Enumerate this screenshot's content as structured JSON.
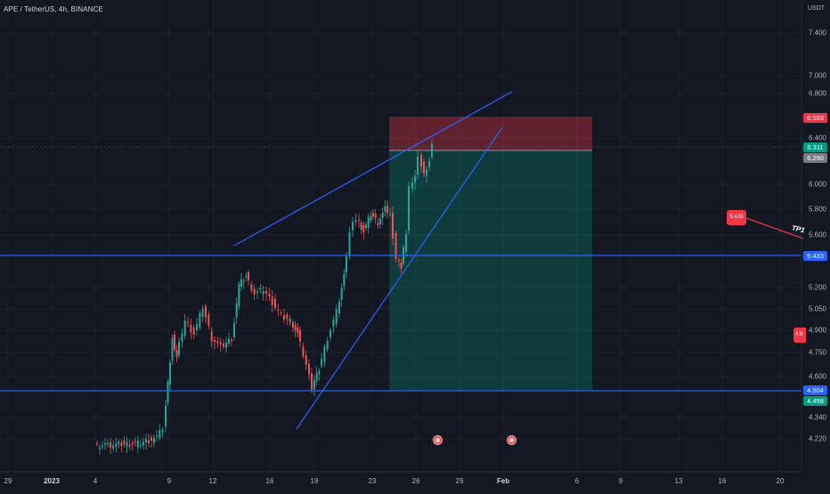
{
  "header": {
    "symbol_line": "APE / TetherUS, 4h, BINANCE"
  },
  "price_axis": {
    "currency": "USDT",
    "ticks": [
      "7.400",
      "7.000",
      "6.800",
      "6.400",
      "6.000",
      "5.800",
      "5.600",
      "5.200",
      "5.050",
      "4.900",
      "4.750",
      "4.600",
      "4.340",
      "4.220"
    ],
    "labels": {
      "stop": "6.583",
      "current": "6.311",
      "entry": "6.290",
      "level_upper": "5.433",
      "level_lower": "4.504",
      "target": "4.498"
    }
  },
  "time_axis": {
    "ticks": [
      "29",
      "2023",
      "4",
      "9",
      "12",
      "16",
      "19",
      "23",
      "26",
      "29",
      "Feb",
      "6",
      "9",
      "13",
      "16",
      "20"
    ]
  },
  "annotations": {
    "note_price": "5.433",
    "note_partial": "4.9",
    "tp_label": "TP1"
  },
  "colors": {
    "background": "#131722",
    "up": "#26a69a",
    "down": "#ef5350",
    "line": "#2962ff",
    "stop_zone": "#f23645",
    "profit_zone": "#089981"
  },
  "icons": [
    "earnings-event-icon",
    "earnings-event-icon"
  ],
  "chart_data": {
    "type": "candlestick",
    "title": "APE / TetherUS, 4h, BINANCE",
    "ylabel": "USDT",
    "x_ticks": [
      "29",
      "2023",
      "4",
      "9",
      "12",
      "16",
      "19",
      "23",
      "26",
      "29",
      "Feb",
      "6",
      "9",
      "13",
      "16",
      "20"
    ],
    "y_ticks": [
      7.4,
      7.0,
      6.8,
      6.4,
      6.0,
      5.8,
      5.6,
      5.2,
      5.05,
      4.9,
      4.75,
      4.6,
      4.34,
      4.22
    ],
    "horizontal_levels": [
      5.433,
      4.504
    ],
    "position": {
      "side": "short",
      "entry": 6.29,
      "stop": 6.583,
      "target": 4.498
    },
    "current_price": 6.311
  }
}
